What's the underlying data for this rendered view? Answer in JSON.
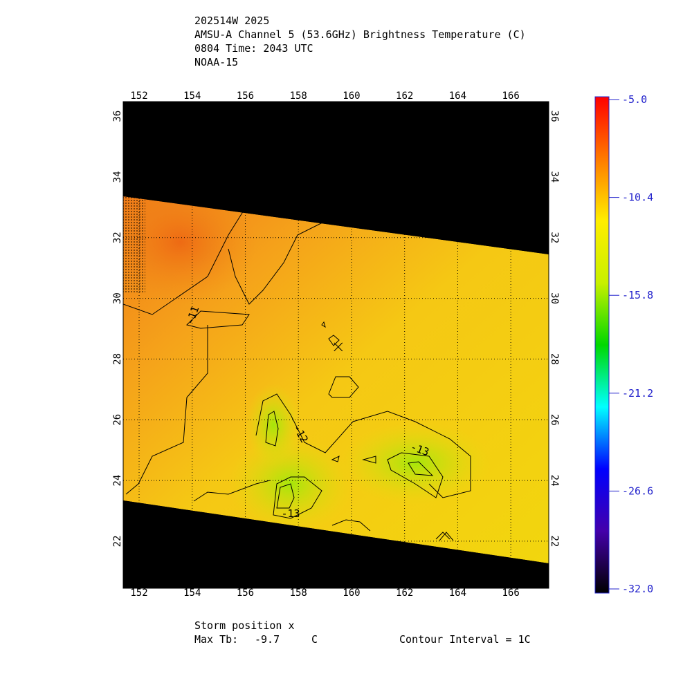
{
  "chart_data": {
    "type": "heatmap",
    "title": "202514W 2025",
    "subtitle": "AMSU-A Channel 5 (53.6GHz) Brightness Temperature (C)",
    "time": "0804 Time: 2043 UTC",
    "satellite": "NOAA-15",
    "xlim": [
      151.4,
      167.43
    ],
    "ylim": [
      20.45,
      36.48
    ],
    "xticks": [
      152,
      154,
      156,
      158,
      160,
      162,
      164,
      166
    ],
    "yticks": [
      22,
      24,
      26,
      28,
      30,
      32,
      34,
      36
    ],
    "grid": true,
    "storm_position": [
      159.5,
      28.4
    ],
    "contour_levels": [
      -11,
      -12,
      -13,
      -13
    ],
    "colorbar": {
      "clim": [
        -32,
        -5
      ],
      "ticks": [
        {
          "value": -5,
          "label": "-5.0"
        },
        -10.4,
        -15.8,
        -21.2,
        -26.6,
        {
          "value": -32,
          "label": "-32.0"
        }
      ],
      "colormap": [
        "#ff0000",
        "#ff7a00",
        "#ffee00",
        "#c8f000",
        "#00d800",
        "#00ffff",
        "#0000ff",
        "#4400aa",
        "#000000"
      ]
    },
    "storm_label": "Storm position x",
    "max_label": "Max Tb:",
    "max_tb": -9.7,
    "max_unit": "C",
    "contour_interval": "Contour Interval = 1C"
  }
}
